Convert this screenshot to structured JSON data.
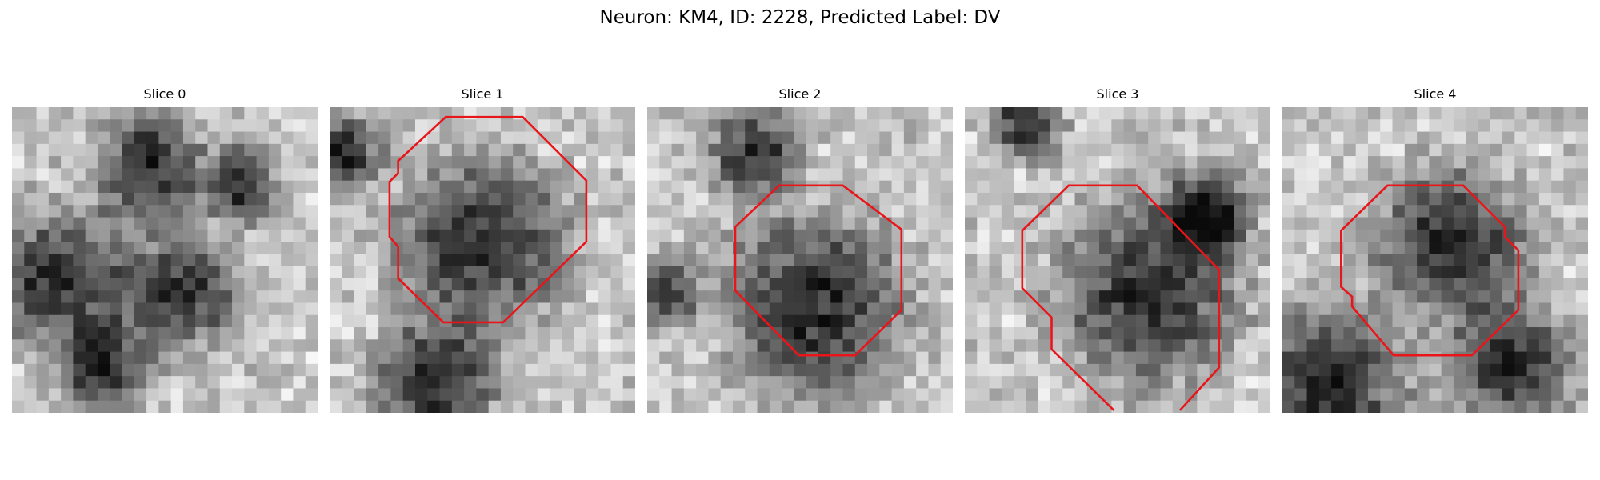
{
  "figure": {
    "title": "Neuron: KM4, ID: 2228, Predicted Label: DV"
  },
  "colors": {
    "contour": "#e8161b",
    "background": "#ffffff"
  },
  "slices": [
    {
      "label": "Slice 0",
      "contour": [],
      "dark_blobs": [
        [
          0.15,
          0.55,
          0.22
        ],
        [
          0.45,
          0.2,
          0.18
        ],
        [
          0.55,
          0.6,
          0.2
        ],
        [
          0.75,
          0.25,
          0.12
        ],
        [
          0.3,
          0.85,
          0.15
        ]
      ],
      "seed": 11
    },
    {
      "label": "Slice 1",
      "contour": [
        [
          16,
          0.3
        ],
        [
          6.3,
          0.3
        ],
        [
          0,
          4.6
        ],
        [
          0,
          11.8
        ],
        [
          3,
          20
        ],
        [
          10.5,
          20.1
        ],
        [
          18.5,
          12.3
        ],
        [
          18.5,
          6.3
        ],
        [
          13,
          0.3
        ]
      ],
      "dark_blobs": [
        [
          0.5,
          0.45,
          0.28
        ],
        [
          0.35,
          0.9,
          0.2
        ],
        [
          0.05,
          0.15,
          0.12
        ]
      ],
      "seed": 23
    },
    {
      "label": "Slice 2",
      "contour": [
        [
          14,
          5.7
        ],
        [
          8.1,
          0.4
        ],
        [
          5,
          0.4
        ],
        [
          0.4,
          4.4
        ],
        [
          0.4,
          11
        ],
        [
          5,
          16.4
        ],
        [
          8.1,
          16.4
        ],
        [
          14,
          10.5
        ]
      ],
      "dark_blobs": [
        [
          0.55,
          0.65,
          0.3
        ],
        [
          0.35,
          0.15,
          0.15
        ],
        [
          0.05,
          0.6,
          0.12
        ]
      ],
      "seed": 37
    },
    {
      "label": "Slice 3",
      "contour": [
        [
          12.5,
          9.5
        ],
        [
          0.5,
          0.5
        ],
        [
          0.5,
          1.2
        ],
        [
          2.2,
          2.7
        ],
        [
          3,
          2.7
        ],
        [
          5.6,
          5.2
        ],
        [
          8.3,
          5.2
        ],
        [
          12.5,
          1.3
        ],
        [
          12.5,
          9.5
        ]
      ],
      "dark_blobs": [
        [
          0.6,
          0.6,
          0.3
        ],
        [
          0.8,
          0.35,
          0.15
        ],
        [
          0.2,
          0.05,
          0.12
        ]
      ],
      "seed": 41
    },
    {
      "label": "Slice 4",
      "contour": [
        [
          11.2,
          8.2
        ],
        [
          8.1,
          5.2
        ],
        [
          5.4,
          5.2
        ],
        [
          1.9,
          8.2
        ],
        [
          1.9,
          13.7
        ],
        [
          2.4,
          14.3
        ],
        [
          2.4,
          15
        ],
        [
          6.4,
          19
        ],
        [
          12.6,
          19
        ],
        [
          15.8,
          15.8
        ],
        [
          15.8,
          10.9
        ],
        [
          15.2,
          10.3
        ],
        [
          15.2,
          9.5
        ],
        [
          11.2,
          8.2
        ]
      ],
      "dark_blobs": [
        [
          0.55,
          0.45,
          0.25
        ],
        [
          0.15,
          0.9,
          0.25
        ],
        [
          0.75,
          0.85,
          0.2
        ]
      ],
      "seed": 53
    }
  ]
}
